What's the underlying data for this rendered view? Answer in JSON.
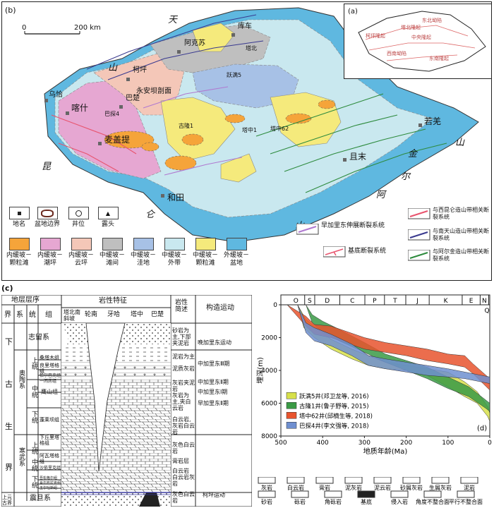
{
  "panel_b": {
    "label": "(b)",
    "scale_start": "0",
    "scale_end": "200 km",
    "regions": {
      "tian": "天",
      "shan_n": "山",
      "kun": "昆",
      "lun": "仑",
      "shan_s": "山",
      "a": "阿",
      "er": "尔",
      "jin": "金",
      "shan_e": "山"
    },
    "places": [
      {
        "name": "阿克苏",
        "x": 255,
        "y": 64
      },
      {
        "name": "库车",
        "x": 332,
        "y": 40
      },
      {
        "name": "柯坪",
        "x": 183,
        "y": 103
      },
      {
        "name": "喀什",
        "x": 97,
        "y": 152
      },
      {
        "name": "巴楚",
        "x": 173,
        "y": 142
      },
      {
        "name": "麦盖提",
        "x": 143,
        "y": 195
      },
      {
        "name": "和田",
        "x": 232,
        "y": 278
      },
      {
        "name": "且末",
        "x": 490,
        "y": 218
      },
      {
        "name": "若羌",
        "x": 597,
        "y": 168
      },
      {
        "name": "乌恰",
        "x": 60,
        "y": 133
      }
    ],
    "labels_small": [
      "永安坝剖面",
      "塔中1",
      "塔中62",
      "巴探4",
      "跃满5",
      "古隆1",
      "塔北"
    ],
    "legend": [
      {
        "label": "地名"
      },
      {
        "label": "盆地边界"
      },
      {
        "label": "井位"
      },
      {
        "label": "露头"
      },
      {
        "label": "早加里东伸展断裂系统"
      },
      {
        "label": "与西昆仑造山带相关断裂系统"
      },
      {
        "label": "与南天山造山带相关断裂系统"
      },
      {
        "label": "基底断裂系统"
      },
      {
        "label": "与阿尔金造山带相关断裂系统"
      }
    ],
    "facies": [
      {
        "label": "内缓坡－颗粒滩",
        "color": "#f5a43a"
      },
      {
        "label": "内缓坡－潮坪",
        "color": "#e6a7d2"
      },
      {
        "label": "内缓坡－云坪",
        "color": "#f4c7b8"
      },
      {
        "label": "中缓坡－滩间",
        "color": "#bfbfbf"
      },
      {
        "label": "中缓坡－洼地",
        "color": "#a7c1e6"
      },
      {
        "label": "中缓坡－外带",
        "color": "#c9e8ef"
      },
      {
        "label": "中缓坡－颗粒滩",
        "color": "#f5ea7c"
      },
      {
        "label": "外缓坡－盆地",
        "color": "#5fb8e0"
      }
    ]
  },
  "panel_a": {
    "label": "(a)",
    "zones": [
      "东北坳陷",
      "中央隆起",
      "西南坳陷",
      "东南隆起",
      "塔北隆起",
      "柯坪隆起"
    ]
  },
  "panel_c": {
    "label": "(c)",
    "head": {
      "col1": "地层层序",
      "jie": "界",
      "xi": "系",
      "tong": "统",
      "zu": "组",
      "col2": "岩性特征",
      "tabei": "塔北南斜坡",
      "lunnan": "轮南",
      "yaha": "牙哈",
      "tazhong": "塔中",
      "bachu": "巴楚",
      "col3": "岩性简述",
      "col4": "构造运动"
    },
    "jie": [
      "下",
      "古",
      "生",
      "界"
    ],
    "xi": [
      {
        "name": "志留系"
      },
      {
        "name": "奥陶系"
      },
      {
        "name": "寒武系"
      },
      {
        "name": "震旦系"
      }
    ],
    "tong": [
      "上统",
      "中统",
      "下统",
      "上统",
      "中统",
      "下统"
    ],
    "zu": [
      "桑塔木组",
      "良里塔格组",
      "恰尔巴克组",
      "一间房组",
      "鹰山组",
      "蓬莱坝组",
      "下丘里塔格组",
      "阿瓦塔格组",
      "沙依里克组",
      "吾松格尔组",
      "肖尔布拉克组",
      "玉尔吐斯组"
    ],
    "jie_upper": "上元古界",
    "desc": [
      "砂岩为主,下部夹泥岩",
      "泥岩为主",
      "泥质灰岩",
      "灰岩夹泥岩",
      "灰岩为主,夹白云岩",
      "白云岩,灰岩白云岩",
      "灰色白云岩",
      "膏岩层",
      "白云岩",
      "白云岩灰岩",
      "灰色白云岩"
    ],
    "tecto": [
      "晚加里东运动",
      "中加里东Ⅲ期",
      "中加里东Ⅱ期",
      "中加里东Ⅰ期",
      "早加里东Ⅱ期",
      "柯坪运动"
    ]
  },
  "chart_data": {
    "type": "area",
    "label": "(d)",
    "xlabel": "地质年龄(Ma)",
    "ylabel": "埋深(m)",
    "xlim": [
      500,
      0
    ],
    "ylim": [
      0,
      8000
    ],
    "xticks": [
      500,
      400,
      300,
      200,
      100,
      0
    ],
    "yticks": [
      0,
      2000,
      4000,
      6000,
      8000
    ],
    "periods": [
      "O",
      "S",
      "D",
      "C",
      "P",
      "T",
      "J",
      "K",
      "E",
      "N",
      "Q"
    ],
    "period_bounds": [
      485,
      443,
      419,
      359,
      299,
      252,
      201,
      145,
      66,
      23,
      2.6,
      0
    ],
    "legend_position": "bottom-left",
    "series": [
      {
        "name": "跃满5井(邓卫龙等, 2016)",
        "color": "#d7e04a",
        "upper": [
          [
            460,
            0
          ],
          [
            440,
            900
          ],
          [
            420,
            1300
          ],
          [
            380,
            2100
          ],
          [
            330,
            2700
          ],
          [
            290,
            3100
          ],
          [
            250,
            3500
          ],
          [
            200,
            3700
          ],
          [
            150,
            3900
          ],
          [
            100,
            4100
          ],
          [
            60,
            4700
          ],
          [
            30,
            5300
          ],
          [
            5,
            6200
          ],
          [
            0,
            6600
          ]
        ],
        "lower": [
          [
            460,
            0
          ],
          [
            445,
            1400
          ],
          [
            420,
            2000
          ],
          [
            380,
            2700
          ],
          [
            330,
            3300
          ],
          [
            290,
            3700
          ],
          [
            250,
            3900
          ],
          [
            200,
            4000
          ],
          [
            150,
            4300
          ],
          [
            100,
            5000
          ],
          [
            60,
            5600
          ],
          [
            30,
            6000
          ],
          [
            5,
            6800
          ],
          [
            0,
            7100
          ]
        ]
      },
      {
        "name": "古隆1井(鲁子野等, 2015)",
        "color": "#3a9a45",
        "upper": [
          [
            440,
            0
          ],
          [
            425,
            600
          ],
          [
            400,
            1000
          ],
          [
            360,
            1500
          ],
          [
            300,
            2300
          ],
          [
            250,
            3000
          ],
          [
            200,
            3400
          ],
          [
            150,
            3800
          ],
          [
            100,
            4400
          ],
          [
            50,
            5000
          ],
          [
            10,
            5800
          ],
          [
            0,
            6000
          ]
        ],
        "lower": [
          [
            440,
            0
          ],
          [
            425,
            1100
          ],
          [
            400,
            1700
          ],
          [
            360,
            2200
          ],
          [
            300,
            2900
          ],
          [
            250,
            3500
          ],
          [
            200,
            4000
          ],
          [
            150,
            4500
          ],
          [
            100,
            5100
          ],
          [
            50,
            5600
          ],
          [
            10,
            6300
          ],
          [
            0,
            6500
          ]
        ]
      },
      {
        "name": "塔中62井(邱楠生等, 2018)",
        "color": "#e8542e",
        "upper": [
          [
            485,
            0
          ],
          [
            440,
            700
          ],
          [
            420,
            1200
          ],
          [
            380,
            1300
          ],
          [
            300,
            2000
          ],
          [
            250,
            2300
          ],
          [
            200,
            2500
          ],
          [
            150,
            2700
          ],
          [
            100,
            3000
          ],
          [
            60,
            3100
          ],
          [
            40,
            3600
          ],
          [
            0,
            4500
          ]
        ],
        "lower": [
          [
            485,
            0
          ],
          [
            440,
            1300
          ],
          [
            420,
            1800
          ],
          [
            380,
            2000
          ],
          [
            300,
            2700
          ],
          [
            250,
            2900
          ],
          [
            200,
            3100
          ],
          [
            150,
            3400
          ],
          [
            100,
            3600
          ],
          [
            60,
            3800
          ],
          [
            40,
            4200
          ],
          [
            0,
            5200
          ]
        ]
      },
      {
        "name": "巴探4井(李文强等, 2018)",
        "color": "#6f8fd0",
        "upper": [
          [
            460,
            0
          ],
          [
            440,
            1100
          ],
          [
            420,
            1400
          ],
          [
            380,
            1800
          ],
          [
            330,
            2400
          ],
          [
            290,
            3100
          ],
          [
            250,
            3300
          ],
          [
            200,
            3500
          ],
          [
            150,
            3700
          ],
          [
            100,
            3900
          ],
          [
            60,
            4100
          ],
          [
            20,
            4300
          ],
          [
            0,
            4400
          ]
        ],
        "lower": [
          [
            460,
            0
          ],
          [
            440,
            1700
          ],
          [
            420,
            2200
          ],
          [
            380,
            2500
          ],
          [
            330,
            3100
          ],
          [
            290,
            3700
          ],
          [
            250,
            3900
          ],
          [
            200,
            4100
          ],
          [
            150,
            4300
          ],
          [
            100,
            4400
          ],
          [
            60,
            4500
          ],
          [
            20,
            4700
          ],
          [
            0,
            4800
          ]
        ]
      }
    ]
  },
  "lith_legend": [
    "灰岩",
    "白云岩",
    "膏岩",
    "泥灰岩",
    "泥云岩",
    "砂屑灰岩",
    "生屑灰岩",
    "泥岩",
    "砂岩",
    "砾岩",
    "角砾岩",
    "基底",
    "侵入岩",
    "角度不整合面",
    "平行不整合面"
  ]
}
